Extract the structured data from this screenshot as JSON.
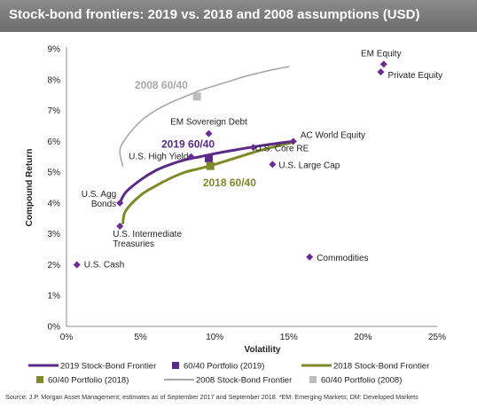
{
  "title": "Stock-bond frontiers:  2019 vs. 2018 and 2008 assumptions (USD)",
  "source": "Source: J.P. Morgan Asset Management; estimates as of September 2017 and September 2018. *EM: Emerging Markets; DM: Developed Markets",
  "colors": {
    "title_bar": "#7a7a7a",
    "frontier_2019": "#5b2a86",
    "frontier_2018": "#7e8a2a",
    "frontier_2008": "#a8a8a8",
    "asset_marker": "#6b2c91",
    "portfolio_2019": "#5b2a86",
    "portfolio_2018": "#7e8a2a",
    "portfolio_2008": "#bdbdbd"
  },
  "chart_data": {
    "type": "scatter",
    "xlabel": "Volatility",
    "ylabel": "Compound Return",
    "xlim": [
      0,
      25
    ],
    "ylim": [
      0,
      9
    ],
    "x_ticks": [
      "0%",
      "5%",
      "10%",
      "15%",
      "20%",
      "25%"
    ],
    "y_ticks": [
      "0%",
      "1%",
      "2%",
      "3%",
      "4%",
      "5%",
      "6%",
      "7%",
      "8%",
      "9%"
    ],
    "grid": false,
    "legend_position": "bottom",
    "assets": [
      {
        "label": "U.S. Cash",
        "x": 0.7,
        "y": 2.0
      },
      {
        "label": "U.S. Agg\nBonds",
        "x": 3.6,
        "y": 4.0
      },
      {
        "label": "U.S. Intermediate\nTreasuries",
        "x": 3.6,
        "y": 3.25
      },
      {
        "label": "U.S. High Yield",
        "x": 8.4,
        "y": 5.5
      },
      {
        "label": "EM Sovereign Debt",
        "x": 9.6,
        "y": 6.25
      },
      {
        "label": "U.S. Core RE",
        "x": 12.6,
        "y": 5.8
      },
      {
        "label": "AC World Equity",
        "x": 15.3,
        "y": 6.0
      },
      {
        "label": "U.S. Large Cap",
        "x": 13.9,
        "y": 5.25
      },
      {
        "label": "Commodities",
        "x": 16.4,
        "y": 2.25
      },
      {
        "label": "EM Equity",
        "x": 21.4,
        "y": 8.5
      },
      {
        "label": "Private Equity",
        "x": 21.2,
        "y": 8.25
      }
    ],
    "series": [
      {
        "name": "2019 Stock-Bond Frontier",
        "style": "line",
        "points": [
          [
            3.6,
            4.0
          ],
          [
            4.0,
            4.35
          ],
          [
            5.0,
            4.75
          ],
          [
            6.0,
            5.05
          ],
          [
            7.0,
            5.25
          ],
          [
            8.0,
            5.4
          ],
          [
            9.0,
            5.5
          ],
          [
            10.0,
            5.6
          ],
          [
            11.0,
            5.69
          ],
          [
            12.0,
            5.77
          ],
          [
            13.0,
            5.85
          ],
          [
            14.0,
            5.92
          ],
          [
            15.3,
            6.0
          ]
        ]
      },
      {
        "name": "60/40 Portfolio (2019)",
        "style": "marker",
        "points": [
          [
            9.6,
            5.45
          ]
        ]
      },
      {
        "name": "2018 Stock-Bond Frontier",
        "style": "line",
        "points": [
          [
            3.8,
            3.35
          ],
          [
            4.0,
            3.75
          ],
          [
            5.0,
            4.25
          ],
          [
            6.0,
            4.55
          ],
          [
            7.0,
            4.8
          ],
          [
            8.0,
            5.0
          ],
          [
            9.0,
            5.12
          ],
          [
            10.0,
            5.25
          ],
          [
            11.0,
            5.4
          ],
          [
            12.0,
            5.55
          ],
          [
            13.0,
            5.7
          ],
          [
            14.0,
            5.82
          ],
          [
            15.3,
            5.97
          ]
        ]
      },
      {
        "name": "60/40 Portfolio (2018)",
        "style": "marker",
        "points": [
          [
            9.7,
            5.2
          ]
        ]
      },
      {
        "name": "2008 Stock-Bond Frontier",
        "style": "line",
        "points": [
          [
            3.8,
            5.2
          ],
          [
            3.6,
            5.7
          ],
          [
            4.0,
            6.1
          ],
          [
            5.0,
            6.65
          ],
          [
            6.0,
            7.0
          ],
          [
            7.0,
            7.25
          ],
          [
            8.0,
            7.45
          ],
          [
            9.0,
            7.65
          ],
          [
            10.0,
            7.8
          ],
          [
            11.0,
            7.95
          ],
          [
            12.0,
            8.1
          ],
          [
            13.0,
            8.22
          ],
          [
            14.0,
            8.33
          ],
          [
            15.0,
            8.42
          ]
        ]
      },
      {
        "name": "60/40 Portfolio (2008)",
        "style": "marker",
        "points": [
          [
            8.8,
            7.45
          ]
        ]
      }
    ],
    "annotations": [
      {
        "text": "2008  60/40",
        "x": 4.6,
        "y": 7.7
      },
      {
        "text": "2019  60/40",
        "x": 6.4,
        "y": 5.8
      },
      {
        "text": "2018  60/40",
        "x": 9.2,
        "y": 4.55
      }
    ]
  }
}
